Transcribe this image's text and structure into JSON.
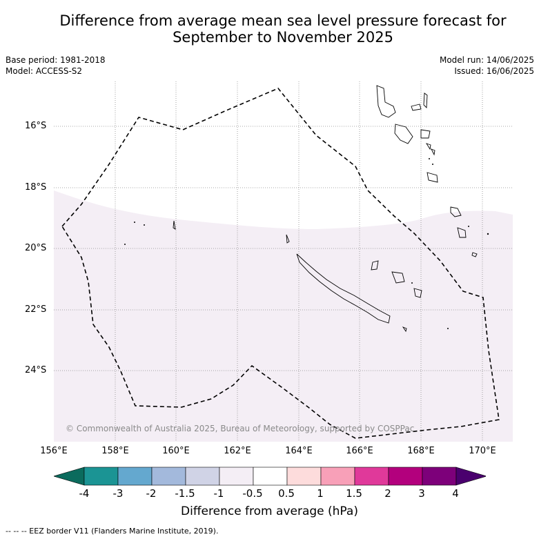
{
  "title": {
    "line1": "Difference from average mean sea level pressure forecast for",
    "line2": "September to November 2025"
  },
  "meta": {
    "base_period": "Base period: 1981-2018",
    "model": "Model: ACCESS-S2",
    "model_run": "Model run: 14/06/2025",
    "issued": "Issued: 16/06/2025"
  },
  "map": {
    "latitude_labels": [
      "16°S",
      "18°S",
      "20°S",
      "22°S",
      "24°S"
    ],
    "longitude_labels": [
      "156°E",
      "158°E",
      "160°E",
      "162°E",
      "164°E",
      "166°E",
      "168°E",
      "170°E"
    ],
    "copyright": "© Commonwealth of Australia 2025, Bureau of Meteorology, supported by COSPPac",
    "shading_color": "#f4eef5",
    "border_style": "dashed-eez"
  },
  "colorbar": {
    "labels": [
      "-4",
      "-3",
      "-2",
      "-1.5",
      "-1",
      "-0.5",
      "0.5",
      "1",
      "1.5",
      "2",
      "3",
      "4"
    ],
    "colors": [
      "#0b6b5d",
      "#1b9494",
      "#64a8cf",
      "#a3b9dc",
      "#d0d3e6",
      "#f4eef5",
      "#ffffff",
      "#fddcdc",
      "#f8a0b8",
      "#e0399a",
      "#b3007d",
      "#7d007a",
      "#4a006e"
    ],
    "title": "Difference from average (hPa)"
  },
  "footnote": "--  --  -- EEZ border V11 (Flanders Marine Institute, 2019)."
}
